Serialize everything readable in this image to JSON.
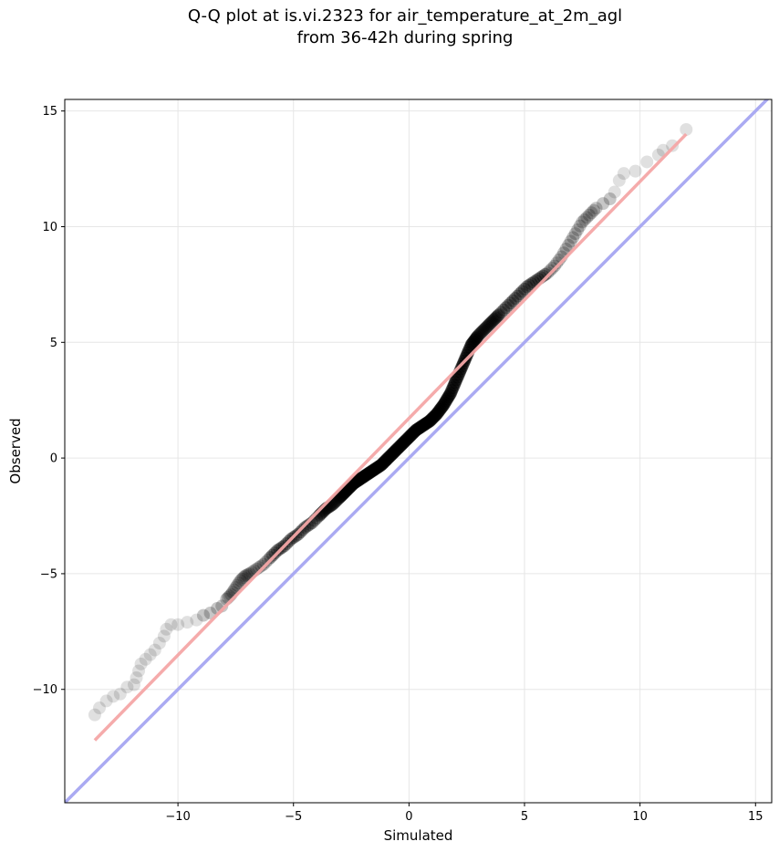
{
  "title": {
    "line1": "Q-Q plot at is.vi.2323 for air_temperature_at_2m_agl",
    "line2": "from 36-42h during spring"
  },
  "chart_data": {
    "type": "scatter",
    "title": "Q-Q plot at is.vi.2323 for air_temperature_at_2m_agl from 36-42h during spring",
    "xlabel": "Simulated",
    "ylabel": "Observed",
    "xlim": [
      -14.9,
      15.7
    ],
    "ylim": [
      -14.9,
      15.5
    ],
    "xticks": [
      -10,
      -5,
      0,
      5,
      10,
      15
    ],
    "yticks": [
      -10,
      -5,
      0,
      5,
      10,
      15
    ],
    "grid": true,
    "series": [
      {
        "kind": "quantile-points",
        "color": "#000000",
        "points": [
          [
            -13.6,
            -11.1
          ],
          [
            -13.4,
            -10.8
          ],
          [
            -13.1,
            -10.5
          ],
          [
            -12.8,
            -10.3
          ],
          [
            -12.5,
            -10.2
          ],
          [
            -12.2,
            -9.9
          ],
          [
            -11.9,
            -9.8
          ],
          [
            -11.8,
            -9.5
          ],
          [
            -11.7,
            -9.2
          ],
          [
            -11.6,
            -8.9
          ],
          [
            -11.4,
            -8.7
          ],
          [
            -11.2,
            -8.5
          ],
          [
            -11.0,
            -8.3
          ],
          [
            -10.8,
            -8.0
          ],
          [
            -10.6,
            -7.7
          ],
          [
            -10.5,
            -7.4
          ],
          [
            -10.3,
            -7.2
          ],
          [
            -10.0,
            -7.2
          ],
          [
            -9.6,
            -7.1
          ],
          [
            -9.2,
            -7.0
          ],
          [
            -8.9,
            -6.8
          ],
          [
            -8.6,
            -6.7
          ],
          [
            -8.3,
            -6.5
          ],
          [
            -8.1,
            -6.4
          ],
          [
            -7.9,
            -6.1
          ],
          [
            -7.7,
            -5.9
          ],
          [
            -7.5,
            -5.6
          ],
          [
            -7.3,
            -5.3
          ],
          [
            -7.1,
            -5.1
          ],
          [
            -6.9,
            -5.0
          ],
          [
            -6.6,
            -4.8
          ],
          [
            -6.3,
            -4.6
          ],
          [
            -6.0,
            -4.3
          ],
          [
            -5.7,
            -4.0
          ],
          [
            -5.4,
            -3.8
          ],
          [
            -5.1,
            -3.5
          ],
          [
            -4.8,
            -3.3
          ],
          [
            -4.5,
            -3.0
          ],
          [
            -4.2,
            -2.8
          ],
          [
            -3.9,
            -2.5
          ],
          [
            -3.6,
            -2.2
          ],
          [
            -3.3,
            -2.0
          ],
          [
            -3.0,
            -1.7
          ],
          [
            -2.7,
            -1.4
          ],
          [
            -2.4,
            -1.1
          ],
          [
            -2.1,
            -0.9
          ],
          [
            -1.8,
            -0.7
          ],
          [
            -1.5,
            -0.5
          ],
          [
            -1.2,
            -0.3
          ],
          [
            -0.9,
            0.0
          ],
          [
            -0.6,
            0.3
          ],
          [
            -0.3,
            0.6
          ],
          [
            0.0,
            0.9
          ],
          [
            0.3,
            1.2
          ],
          [
            0.6,
            1.4
          ],
          [
            0.9,
            1.6
          ],
          [
            1.2,
            1.9
          ],
          [
            1.5,
            2.3
          ],
          [
            1.8,
            2.8
          ],
          [
            2.1,
            3.5
          ],
          [
            2.4,
            4.2
          ],
          [
            2.7,
            4.9
          ],
          [
            3.0,
            5.3
          ],
          [
            3.3,
            5.6
          ],
          [
            3.6,
            5.9
          ],
          [
            3.9,
            6.2
          ],
          [
            4.2,
            6.5
          ],
          [
            4.5,
            6.8
          ],
          [
            4.8,
            7.1
          ],
          [
            5.1,
            7.4
          ],
          [
            5.4,
            7.6
          ],
          [
            5.7,
            7.8
          ],
          [
            6.0,
            8.0
          ],
          [
            6.3,
            8.3
          ],
          [
            6.6,
            8.7
          ],
          [
            6.9,
            9.2
          ],
          [
            7.2,
            9.7
          ],
          [
            7.5,
            10.2
          ],
          [
            7.8,
            10.5
          ],
          [
            8.1,
            10.8
          ],
          [
            8.4,
            11.0
          ],
          [
            8.7,
            11.2
          ],
          [
            8.9,
            11.5
          ],
          [
            9.1,
            12.0
          ],
          [
            9.3,
            12.3
          ],
          [
            9.8,
            12.4
          ],
          [
            10.3,
            12.8
          ],
          [
            10.8,
            13.1
          ],
          [
            11.0,
            13.3
          ],
          [
            11.4,
            13.5
          ],
          [
            12.0,
            14.2
          ]
        ]
      },
      {
        "kind": "fit-line",
        "color": "#f4a6a6",
        "from": [
          -13.6,
          -12.2
        ],
        "to": [
          12.0,
          14.0
        ]
      },
      {
        "kind": "identity-line",
        "color": "#aaaaf2",
        "from": [
          -14.9,
          -14.9
        ],
        "to": [
          15.7,
          15.7
        ]
      }
    ]
  }
}
